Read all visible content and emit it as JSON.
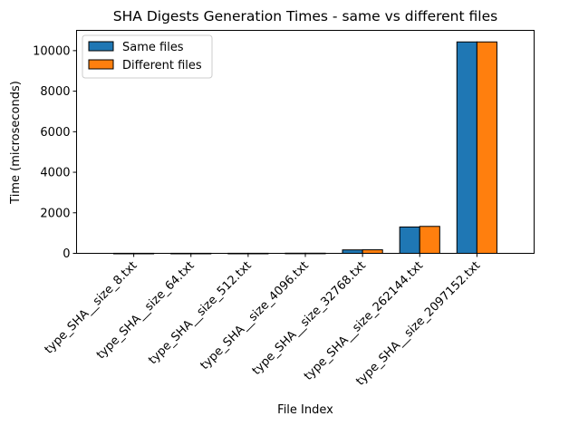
{
  "chart_data": {
    "type": "bar",
    "title": "SHA Digests Generation Times - same vs different files",
    "xlabel": "File Index",
    "ylabel": "Time (microseconds)",
    "ylim": [
      0,
      11000
    ],
    "yticks": [
      0,
      2000,
      4000,
      6000,
      8000,
      10000
    ],
    "grid": false,
    "legend_position": "top-left",
    "categories": [
      "type_SHA__size_8.txt",
      "type_SHA__size_64.txt",
      "type_SHA__size_512.txt",
      "type_SHA__size_4096.txt",
      "type_SHA__size_32768.txt",
      "type_SHA__size_262144.txt",
      "type_SHA__size_2097152.txt"
    ],
    "series": [
      {
        "name": "Same files",
        "color": "#1f77b4",
        "values": [
          3,
          3,
          4,
          8,
          170,
          1300,
          10430
        ]
      },
      {
        "name": "Different files",
        "color": "#ff7f0e",
        "values": [
          3,
          3,
          4,
          8,
          175,
          1330,
          10430
        ]
      }
    ]
  }
}
